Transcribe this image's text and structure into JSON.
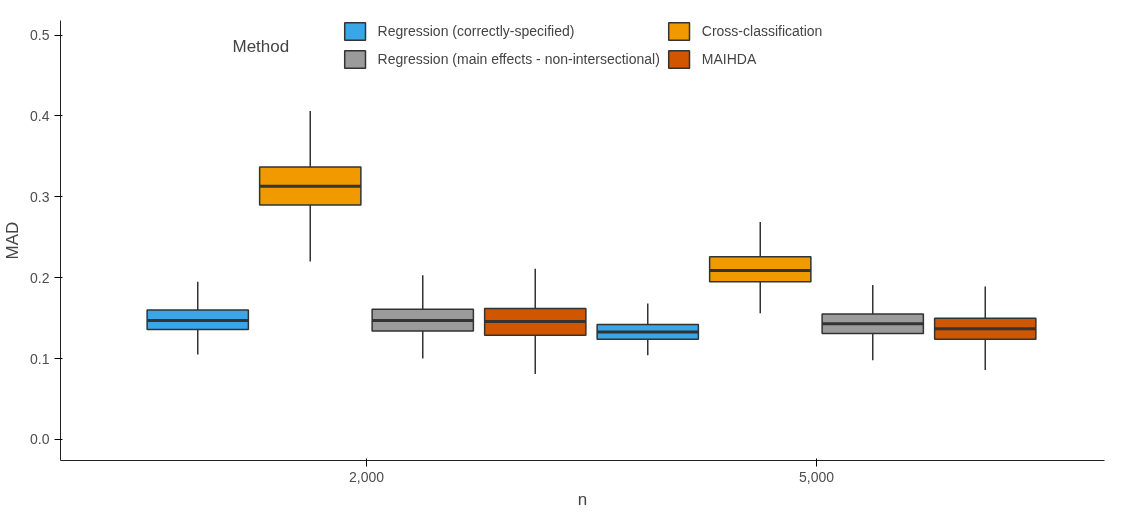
{
  "chart_data": {
    "type": "box",
    "xlabel": "n",
    "ylabel": "MAD",
    "legend_title": "Method",
    "legend": "top",
    "grid": false,
    "categories": [
      "2,000",
      "5,000"
    ],
    "ylim": [
      -0.026,
      0.518
    ],
    "yticks": [
      {
        "value": 0,
        "label": "0.0"
      },
      0.1,
      0.2,
      0.3,
      0.4,
      0.5
    ],
    "series": [
      {
        "name": "Regression (correctly-specified)",
        "color": "#39a6e8",
        "boxes": [
          {
            "low": 0.105,
            "q1": 0.136,
            "median": 0.147,
            "q3": 0.16,
            "high": 0.195
          },
          {
            "low": 0.104,
            "q1": 0.124,
            "median": 0.133,
            "q3": 0.142,
            "high": 0.168
          }
        ]
      },
      {
        "name": "Cross-classification",
        "color": "#f09a00",
        "boxes": [
          {
            "low": 0.22,
            "q1": 0.29,
            "median": 0.313,
            "q3": 0.337,
            "high": 0.406
          },
          {
            "low": 0.156,
            "q1": 0.195,
            "median": 0.209,
            "q3": 0.226,
            "high": 0.269
          }
        ]
      },
      {
        "name": "Regression (main effects - non-intersectional)",
        "color": "#9b9b9b",
        "boxes": [
          {
            "low": 0.1,
            "q1": 0.134,
            "median": 0.147,
            "q3": 0.161,
            "high": 0.203
          },
          {
            "low": 0.098,
            "q1": 0.131,
            "median": 0.143,
            "q3": 0.155,
            "high": 0.191
          }
        ]
      },
      {
        "name": "MAIHDA",
        "color": "#d05600",
        "boxes": [
          {
            "low": 0.081,
            "q1": 0.129,
            "median": 0.146,
            "q3": 0.162,
            "high": 0.211
          },
          {
            "low": 0.086,
            "q1": 0.124,
            "median": 0.137,
            "q3": 0.15,
            "high": 0.189
          }
        ]
      }
    ]
  }
}
